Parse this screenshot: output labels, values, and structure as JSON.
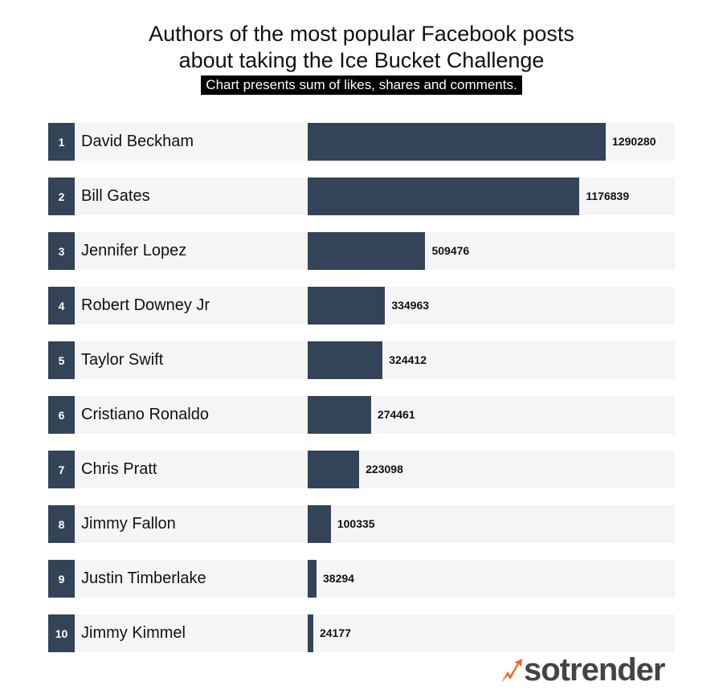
{
  "chart_data": {
    "type": "bar",
    "orientation": "horizontal",
    "title": "Authors of the most popular Facebook posts about taking the Ice Bucket Challenge",
    "title_lines": [
      "Authors of the most popular Facebook posts",
      "about taking the Ice Bucket Challenge"
    ],
    "subtitle": "Chart presents sum of likes, shares and comments.",
    "ranks": [
      "1",
      "2",
      "3",
      "4",
      "5",
      "6",
      "7",
      "8",
      "9",
      "10"
    ],
    "categories": [
      "David Beckham",
      "Bill Gates",
      "Jennifer Lopez",
      "Robert Downey Jr",
      "Taylor Swift",
      "Cristiano Ronaldo",
      "Chris Pratt",
      "Jimmy Fallon",
      "Justin Timberlake",
      "Jimmy Kimmel"
    ],
    "values": [
      1290280,
      1176839,
      509476,
      334963,
      324412,
      274461,
      223098,
      100335,
      38294,
      24177
    ],
    "xlim": [
      0,
      1290280
    ],
    "bar_color": "#344458",
    "track_color": "#f5f5f5"
  },
  "logo": {
    "text": "sotrender",
    "accent": "#f26522"
  }
}
